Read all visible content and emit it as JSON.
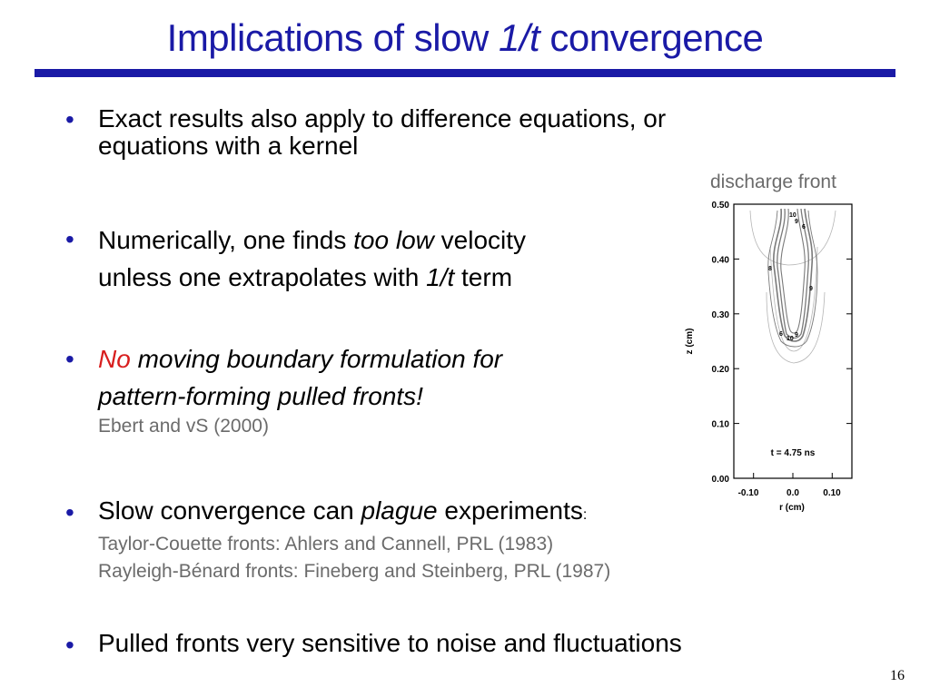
{
  "slide": {
    "title": {
      "part1": "Implications of slow ",
      "italic": "1/t",
      "part2": " convergence"
    },
    "bullets": [
      {
        "marker": "•",
        "line1": "Exact results also apply to difference equations, or",
        "line2": "equations with a kernel"
      },
      {
        "marker": "•",
        "line1_a": "Numerically, one finds ",
        "line1_italic": "too low",
        "line1_b": " velocity",
        "line2_a": "unless one extrapolates with ",
        "line2_italic": "1/t",
        "line2_b": " term"
      },
      {
        "marker": "•",
        "red_word": "No",
        "line1_rest": " moving boundary formulation for",
        "line2": "pattern-forming pulled fronts!",
        "reference": "Ebert and vS (2000)"
      },
      {
        "marker": "•",
        "text_a": "Slow convergence can ",
        "text_italic": "plague",
        "text_b": " experiments",
        "colon": ":",
        "references": [
          "Taylor-Couette fronts: Ahlers and Cannell, PRL (1983)",
          "Rayleigh-Bénard fronts: Fineberg and Steinberg, PRL (1987)"
        ]
      },
      {
        "marker": "•",
        "text": "Pulled fronts very sensitive to noise and fluctuations"
      }
    ],
    "page_number": "16"
  },
  "figure": {
    "caption": "discharge front",
    "annotation": "t = 4.75 ns",
    "contour_labels": [
      "10",
      "9",
      "6",
      "8",
      "9",
      "6",
      "10",
      "9"
    ]
  },
  "chart_data": {
    "type": "contour",
    "title": "",
    "xlabel": "r (cm)",
    "ylabel": "z (cm)",
    "xlim": [
      -0.15,
      0.15
    ],
    "ylim": [
      0.0,
      0.5
    ],
    "x_ticks": [
      "-0.10",
      "0.0",
      "0.10"
    ],
    "y_ticks": [
      "0.00",
      "0.10",
      "0.20",
      "0.30",
      "0.40",
      "0.50"
    ],
    "grid": false,
    "annotation": "t = 4.75 ns"
  }
}
